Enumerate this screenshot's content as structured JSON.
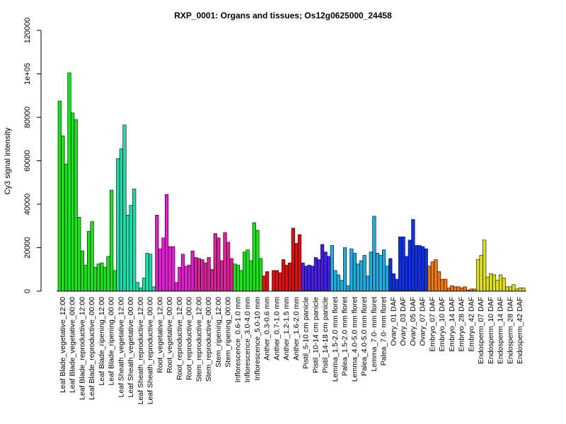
{
  "chart_data": {
    "type": "bar",
    "title": "RXP_0001: Organs and tissues; Os12g0625000_24458",
    "xlabel": "",
    "ylabel": "Cy3 signal intensity",
    "ylim": [
      0,
      120000
    ],
    "yticks": [
      0,
      20000,
      40000,
      60000,
      80000,
      100000,
      120000
    ],
    "ytick_labels": [
      "0",
      "20000",
      "40000",
      "60000",
      "80000",
      "1e+05",
      "120000"
    ],
    "grid": false,
    "legend": "none",
    "groups": [
      {
        "label": "Leaf Blade_vegetative_12:00",
        "color": "#22dd22",
        "values": [
          87500,
          71500,
          58500
        ]
      },
      {
        "label": "Leaf Blade_vegetative_00:00",
        "color": "#22dd22",
        "values": [
          100500,
          82000,
          79000
        ]
      },
      {
        "label": "Leaf Blade_reproductive_12:00",
        "color": "#22dd22",
        "values": [
          34000,
          18500,
          12000
        ]
      },
      {
        "label": "Leaf Blade_reproductive_00:00",
        "color": "#22dd22",
        "values": [
          27500,
          32000,
          11000
        ]
      },
      {
        "label": "Leaf Blade_ripening_12:00",
        "color": "#22dd22",
        "values": [
          12500,
          13000,
          11000
        ]
      },
      {
        "label": "Leaf Blade_ripening_00:00",
        "color": "#22dd22",
        "values": [
          16000,
          46500,
          9500
        ]
      },
      {
        "label": "Leaf Sheath_vegetative_12:00",
        "color": "#22d9a8",
        "values": [
          61000,
          65500,
          76500
        ]
      },
      {
        "label": "Leaf Sheath_vegetative_00:00",
        "color": "#22d9a8",
        "values": [
          35000,
          39500,
          47000
        ]
      },
      {
        "label": "Leaf Sheath_reproductive_12:00",
        "color": "#22d9a8",
        "values": [
          4000,
          1500,
          6000
        ]
      },
      {
        "label": "Leaf Sheath_reproductive_00:00",
        "color": "#22d9a8",
        "values": [
          17500,
          17000,
          2000
        ]
      },
      {
        "label": "Root_vegetative_12:00",
        "color": "#dd22cc",
        "values": [
          35000,
          19500,
          24500
        ]
      },
      {
        "label": "Root_vegetative_00:00",
        "color": "#dd22cc",
        "values": [
          44500,
          20500,
          20500
        ]
      },
      {
        "label": "Root_reproductive_12:00",
        "color": "#dd22cc",
        "values": [
          4000,
          11000,
          17000
        ]
      },
      {
        "label": "Root_reproductive_00:00",
        "color": "#dd22cc",
        "values": [
          11500,
          12000,
          18500
        ]
      },
      {
        "label": "Stem_reproductive_12:00",
        "color": "#dd2299",
        "values": [
          15500,
          15000,
          14500
        ]
      },
      {
        "label": "Stem_reproductive_00:00",
        "color": "#dd2299",
        "values": [
          13000,
          15500,
          10000
        ]
      },
      {
        "label": "Stem_ripening_12:00",
        "color": "#dd2299",
        "values": [
          26500,
          24500,
          14000
        ]
      },
      {
        "label": "Stem_ripening_00:00",
        "color": "#dd2299",
        "values": [
          27000,
          22500,
          15000
        ]
      },
      {
        "label": "Inflorescence_0.6-1.0 mm",
        "color": "#22dd22",
        "values": [
          12500,
          12000,
          9500
        ]
      },
      {
        "label": "Inflorescence_3.0-4.0 mm",
        "color": "#22dd22",
        "values": [
          18000,
          19000,
          14000
        ]
      },
      {
        "label": "Inflorescence_5.0-10 mm",
        "color": "#22dd22",
        "values": [
          31500,
          28000,
          15000
        ]
      },
      {
        "label": "Anther_0.3-0.6 mm",
        "color": "#dd1111",
        "values": [
          7000,
          9000
        ]
      },
      {
        "label": "Anther_0.7-1.0 mm",
        "color": "#dd1111",
        "values": [
          9500,
          9500,
          8500
        ]
      },
      {
        "label": "Anther_1.2-1.5 mm",
        "color": "#dd1111",
        "values": [
          14500,
          12000,
          13000
        ]
      },
      {
        "label": "Anther_1.6-2.0 mm",
        "color": "#dd1111",
        "values": [
          29000,
          22000,
          26000
        ]
      },
      {
        "label": "Pistil_5-10 cm panicle",
        "color": "#4422dd",
        "values": [
          13000,
          11500,
          12000
        ]
      },
      {
        "label": "Pistil_10-14 cm panicle",
        "color": "#4422dd",
        "values": [
          11500,
          15500,
          14500
        ]
      },
      {
        "label": "Pistil_14-18 cm panicle",
        "color": "#4422dd",
        "values": [
          21500,
          18000,
          16000
        ]
      },
      {
        "label": "Lemma_1.5-2.0 mm floret",
        "color": "#22aadd",
        "values": [
          21000,
          9500,
          7500
        ]
      },
      {
        "label": "Palea_1.5-2.0 mm floret",
        "color": "#22aadd",
        "values": [
          5000,
          20000,
          2500
        ]
      },
      {
        "label": "Lemma_4.0-5.0 mm floret",
        "color": "#22aadd",
        "values": [
          19500,
          17500,
          12500
        ]
      },
      {
        "label": "Palea_4.0-5.0 mm floret",
        "color": "#22aadd",
        "values": [
          14000,
          16500,
          7000
        ]
      },
      {
        "label": "Lemma_7.0- mm floret",
        "color": "#22aadd",
        "values": [
          18000,
          34500,
          17500
        ]
      },
      {
        "label": "Palea_7.0- mm floret",
        "color": "#22aadd",
        "values": [
          16500,
          19000,
          11500
        ]
      },
      {
        "label": "Ovary_01 DAF",
        "color": "#1133dd",
        "values": [
          15000,
          8000,
          5500
        ]
      },
      {
        "label": "Ovary_03 DAF",
        "color": "#1133dd",
        "values": [
          25000,
          25000,
          16000
        ]
      },
      {
        "label": "Ovary_05 DAF",
        "color": "#1133dd",
        "values": [
          23500,
          33000,
          21000
        ]
      },
      {
        "label": "Ovary_07 DAF",
        "color": "#1133dd",
        "values": [
          21000,
          20500,
          19500
        ]
      },
      {
        "label": "Embryo_07 DAF",
        "color": "#ee7711",
        "values": [
          11500,
          13500,
          14500
        ]
      },
      {
        "label": "Embryo_10 DAF",
        "color": "#ee7711",
        "values": [
          9000,
          5500,
          5500
        ]
      },
      {
        "label": "Embryo_14 DAF",
        "color": "#ee7711",
        "values": [
          1500,
          2500,
          2000
        ]
      },
      {
        "label": "Embryo_28 DAF",
        "color": "#ee7711",
        "values": [
          2000,
          1500,
          2000
        ]
      },
      {
        "label": "Embryo_42 DAF",
        "color": "#ee7711",
        "values": [
          500,
          1000,
          1000
        ]
      },
      {
        "label": "Endosperm_07 DAF",
        "color": "#dddd22",
        "values": [
          14500,
          16500,
          23500
        ]
      },
      {
        "label": "Endosperm_10 DAF",
        "color": "#dddd22",
        "values": [
          6500,
          8000,
          7500
        ]
      },
      {
        "label": "Endosperm_14 DAF",
        "color": "#dddd22",
        "values": [
          5000,
          7500,
          6000
        ]
      },
      {
        "label": "Endosperm_28 DAF",
        "color": "#dddd22",
        "values": [
          2000,
          2000,
          3000
        ]
      },
      {
        "label": "Endosperm_42 DAF",
        "color": "#dddd22",
        "values": [
          1000,
          1500,
          1500
        ]
      }
    ]
  }
}
